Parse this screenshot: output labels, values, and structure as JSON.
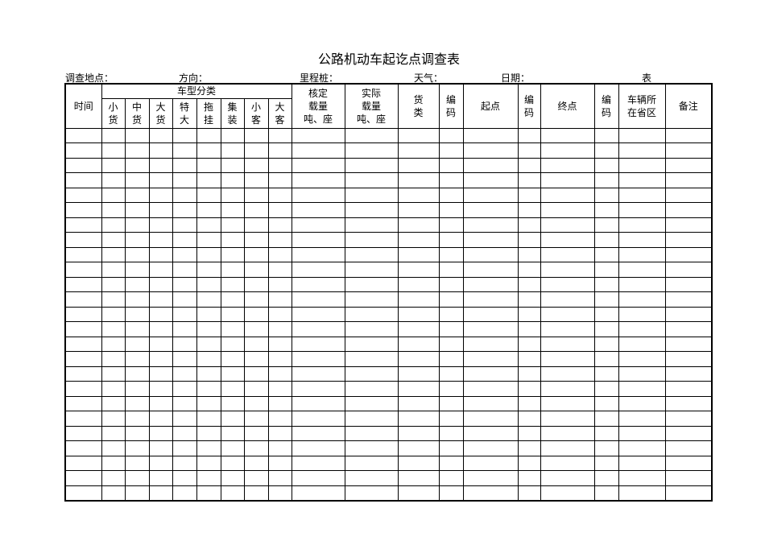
{
  "title": "公路机动车起讫点调查表",
  "info": {
    "location": "调查地点：",
    "direction": "方向：",
    "milepost": "里程桩：",
    "weather": "天气：",
    "date": "日期：",
    "table_suffix": "表"
  },
  "header": {
    "time": "时间",
    "vehicle_type": "车型分类",
    "vehicle_types": [
      [
        "小",
        "货"
      ],
      [
        "中",
        "货"
      ],
      [
        "大",
        "货"
      ],
      [
        "特",
        "大"
      ],
      [
        "拖",
        "挂"
      ],
      [
        "集",
        "装"
      ],
      [
        "小",
        "客"
      ],
      [
        "大",
        "客"
      ]
    ],
    "rated_load": [
      "核定",
      "载量",
      "吨、座"
    ],
    "actual_load": [
      "实际",
      "载量",
      "吨、座"
    ],
    "cargo_type": [
      "货",
      "类"
    ],
    "code": [
      "编",
      "码"
    ],
    "origin": "起点",
    "destination": "终点",
    "vehicle_province": [
      "车辆所",
      "在省区"
    ],
    "remarks": "备注"
  },
  "row_count": 25
}
